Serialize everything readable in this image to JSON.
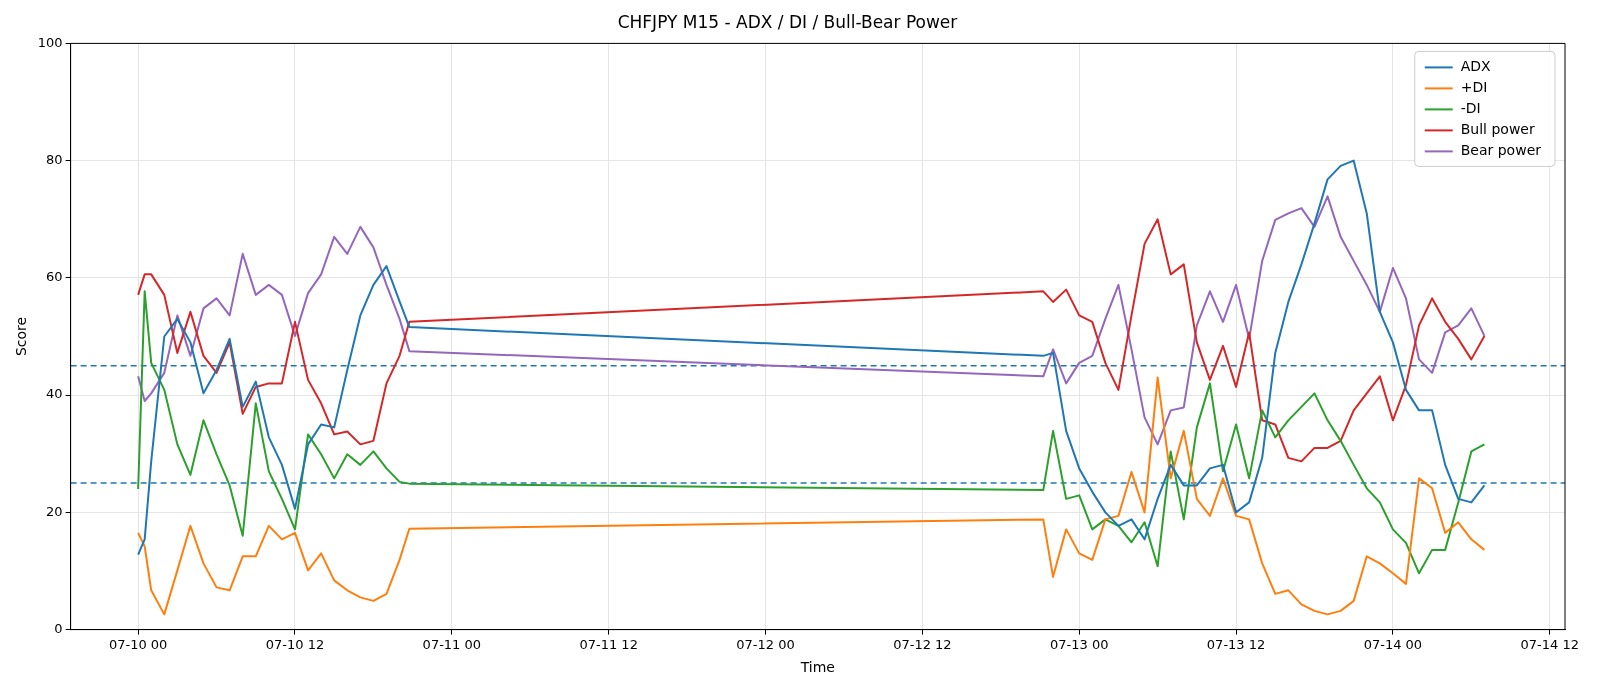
{
  "chart_data": {
    "type": "line",
    "title": "CHFJPY M15 - ADX / DI / Bull-Bear Power",
    "xlabel": "Time",
    "ylabel": "Score",
    "x": [
      "--07-10T00:00",
      "--07-10T00:30",
      "--07-10T01:00",
      "--07-10T02:00",
      "--07-10T03:00",
      "--07-10T04:00",
      "--07-10T05:00",
      "--07-10T06:00",
      "--07-10T07:00",
      "--07-10T08:00",
      "--07-10T09:00",
      "--07-10T10:00",
      "--07-10T11:00",
      "--07-10T12:00",
      "--07-10T13:00",
      "--07-10T14:00",
      "--07-10T15:00",
      "--07-10T16:00",
      "--07-10T17:00",
      "--07-10T18:00",
      "--07-10T19:00",
      "--07-10T20:00",
      "--07-10T20:45",
      "--07-12T21:15",
      "--07-12T22:00",
      "--07-12T23:00",
      "--07-13T00:00",
      "--07-13T01:00",
      "--07-13T02:00",
      "--07-13T03:00",
      "--07-13T04:00",
      "--07-13T05:00",
      "--07-13T06:00",
      "--07-13T07:00",
      "--07-13T08:00",
      "--07-13T09:00",
      "--07-13T10:00",
      "--07-13T11:00",
      "--07-13T12:00",
      "--07-13T13:00",
      "--07-13T14:00",
      "--07-13T15:00",
      "--07-13T16:00",
      "--07-13T17:00",
      "--07-13T18:00",
      "--07-13T19:00",
      "--07-13T20:00",
      "--07-13T21:00",
      "--07-13T22:00",
      "--07-13T23:00",
      "--07-14T00:00",
      "--07-14T01:00",
      "--07-14T02:00",
      "--07-14T03:00",
      "--07-14T04:00",
      "--07-14T05:00",
      "--07-14T06:00",
      "--07-14T07:00"
    ],
    "series": [
      {
        "name": "ADX",
        "color": "#1f77b4",
        "values": [
          12.8,
          15.4,
          28.7,
          50,
          53,
          49,
          40.3,
          44.3,
          49.6,
          38,
          42.3,
          32.8,
          28.1,
          20.6,
          31.6,
          35,
          34.5,
          44.3,
          53.6,
          58.8,
          62,
          56,
          51.6,
          46.7,
          47.2,
          33.9,
          27.5,
          23.5,
          20,
          17.7,
          18.8,
          15.4,
          22.3,
          28.1,
          24.6,
          24.6,
          27.5,
          28.1,
          20,
          21.7,
          29.3,
          47.2,
          55.9,
          62.3,
          69.3,
          76.8,
          79.1,
          80,
          71,
          54.2,
          49,
          40.9,
          37.4,
          37.4,
          28.1,
          22.3,
          21.7,
          24.6
        ]
      },
      {
        "name": "+DI",
        "color": "#ff7f0e",
        "values": [
          16.5,
          14.2,
          6.7,
          2.6,
          10.1,
          17.7,
          11.3,
          7.2,
          6.7,
          12.5,
          12.5,
          17.7,
          15.4,
          16.5,
          10.1,
          13,
          8.4,
          6.7,
          5.5,
          4.9,
          6.1,
          11.9,
          17.2,
          18.8,
          9,
          17.1,
          13,
          11.9,
          18.8,
          19.4,
          26.9,
          20,
          43,
          25.8,
          33.9,
          22.3,
          19.4,
          25.8,
          19.4,
          18.8,
          11.3,
          6.1,
          6.7,
          4.3,
          3.2,
          2.6,
          3.2,
          4.9,
          12.5,
          11.3,
          9.6,
          7.8,
          25.8,
          24.1,
          16.5,
          18.3,
          15.4,
          13.6
        ]
      },
      {
        "name": "-DI",
        "color": "#2ca02c",
        "values": [
          24,
          57.7,
          45.5,
          40.9,
          31.6,
          26.4,
          35.7,
          29.9,
          24.6,
          16,
          38.6,
          27,
          22.3,
          17.1,
          33.3,
          29.9,
          25.8,
          29.9,
          28.1,
          30.4,
          27.5,
          25.2,
          24.9,
          23.8,
          33.9,
          22.3,
          22.9,
          17.1,
          18.8,
          17.7,
          14.9,
          18.3,
          10.8,
          30.4,
          18.8,
          34.5,
          42,
          27,
          35,
          25.8,
          37.4,
          32.8,
          35.7,
          38,
          40.3,
          35.7,
          32.2,
          28.1,
          24.1,
          21.7,
          17.1,
          14.8,
          9.6,
          13.6,
          13.6,
          21.7,
          30.4,
          31.6
        ]
      },
      {
        "name": "Bull power",
        "color": "#d62728",
        "values": [
          57.1,
          60.6,
          60.6,
          57.1,
          47.2,
          54.2,
          46.7,
          43.8,
          49,
          36.8,
          41.4,
          42,
          42,
          52.5,
          42.6,
          38.6,
          33.3,
          33.8,
          31.6,
          32.2,
          42,
          46.7,
          52.5,
          57.7,
          55.9,
          58,
          53.6,
          52.5,
          45.5,
          40.9,
          53.6,
          65.8,
          70,
          60.6,
          62.3,
          49,
          42.6,
          48.4,
          41.4,
          50.7,
          35.7,
          35,
          29.3,
          28.7,
          31,
          31,
          32.2,
          37.4,
          40.3,
          43.2,
          35.7,
          41.7,
          51.9,
          56.5,
          52.5,
          49.6,
          46.1,
          50.1
        ]
      },
      {
        "name": "Bear power",
        "color": "#9467bd",
        "values": [
          43.2,
          39,
          40.3,
          43.8,
          53.6,
          46.7,
          54.8,
          56.5,
          53.6,
          64.1,
          57.1,
          58.8,
          57.1,
          50.1,
          57.4,
          60.6,
          67,
          64.1,
          68.7,
          65.2,
          58.8,
          53,
          47.5,
          43.2,
          47.8,
          42,
          45.5,
          46.7,
          53,
          58.8,
          47.8,
          36.2,
          31.6,
          37.4,
          37.9,
          51.9,
          57.7,
          52.5,
          58.8,
          49.6,
          62.9,
          69.9,
          71,
          71.9,
          68.7,
          73.9,
          67,
          62.9,
          58.8,
          54.2,
          61.7,
          56.5,
          46.1,
          43.8,
          50.7,
          51.9,
          54.8,
          50.1
        ]
      }
    ],
    "xlim": [
      "--07-09T18:50",
      "--07-14T13:10"
    ],
    "xticks": [
      {
        "value": "--07-10T00:00",
        "label": "07-10 00"
      },
      {
        "value": "--07-10T12:00",
        "label": "07-10 12"
      },
      {
        "value": "--07-11T00:00",
        "label": "07-11 00"
      },
      {
        "value": "--07-11T12:00",
        "label": "07-11 12"
      },
      {
        "value": "--07-12T00:00",
        "label": "07-12 00"
      },
      {
        "value": "--07-12T12:00",
        "label": "07-12 12"
      },
      {
        "value": "--07-13T00:00",
        "label": "07-13 00"
      },
      {
        "value": "--07-13T12:00",
        "label": "07-13 12"
      },
      {
        "value": "--07-14T00:00",
        "label": "07-14 00"
      },
      {
        "value": "--07-14T12:00",
        "label": "07-14 12"
      }
    ],
    "ylim": [
      0,
      100
    ],
    "yticks": [
      0,
      20,
      40,
      60,
      80,
      100
    ],
    "ref_lines": [
      {
        "axis": "y",
        "value": 45,
        "color": "#1f77b4",
        "line_style": "dashed"
      },
      {
        "axis": "y",
        "value": 25,
        "color": "#1f77b4",
        "line_style": "dashed"
      }
    ],
    "grid": true,
    "legend": "top right",
    "marker": "none",
    "line_style": "solid"
  }
}
